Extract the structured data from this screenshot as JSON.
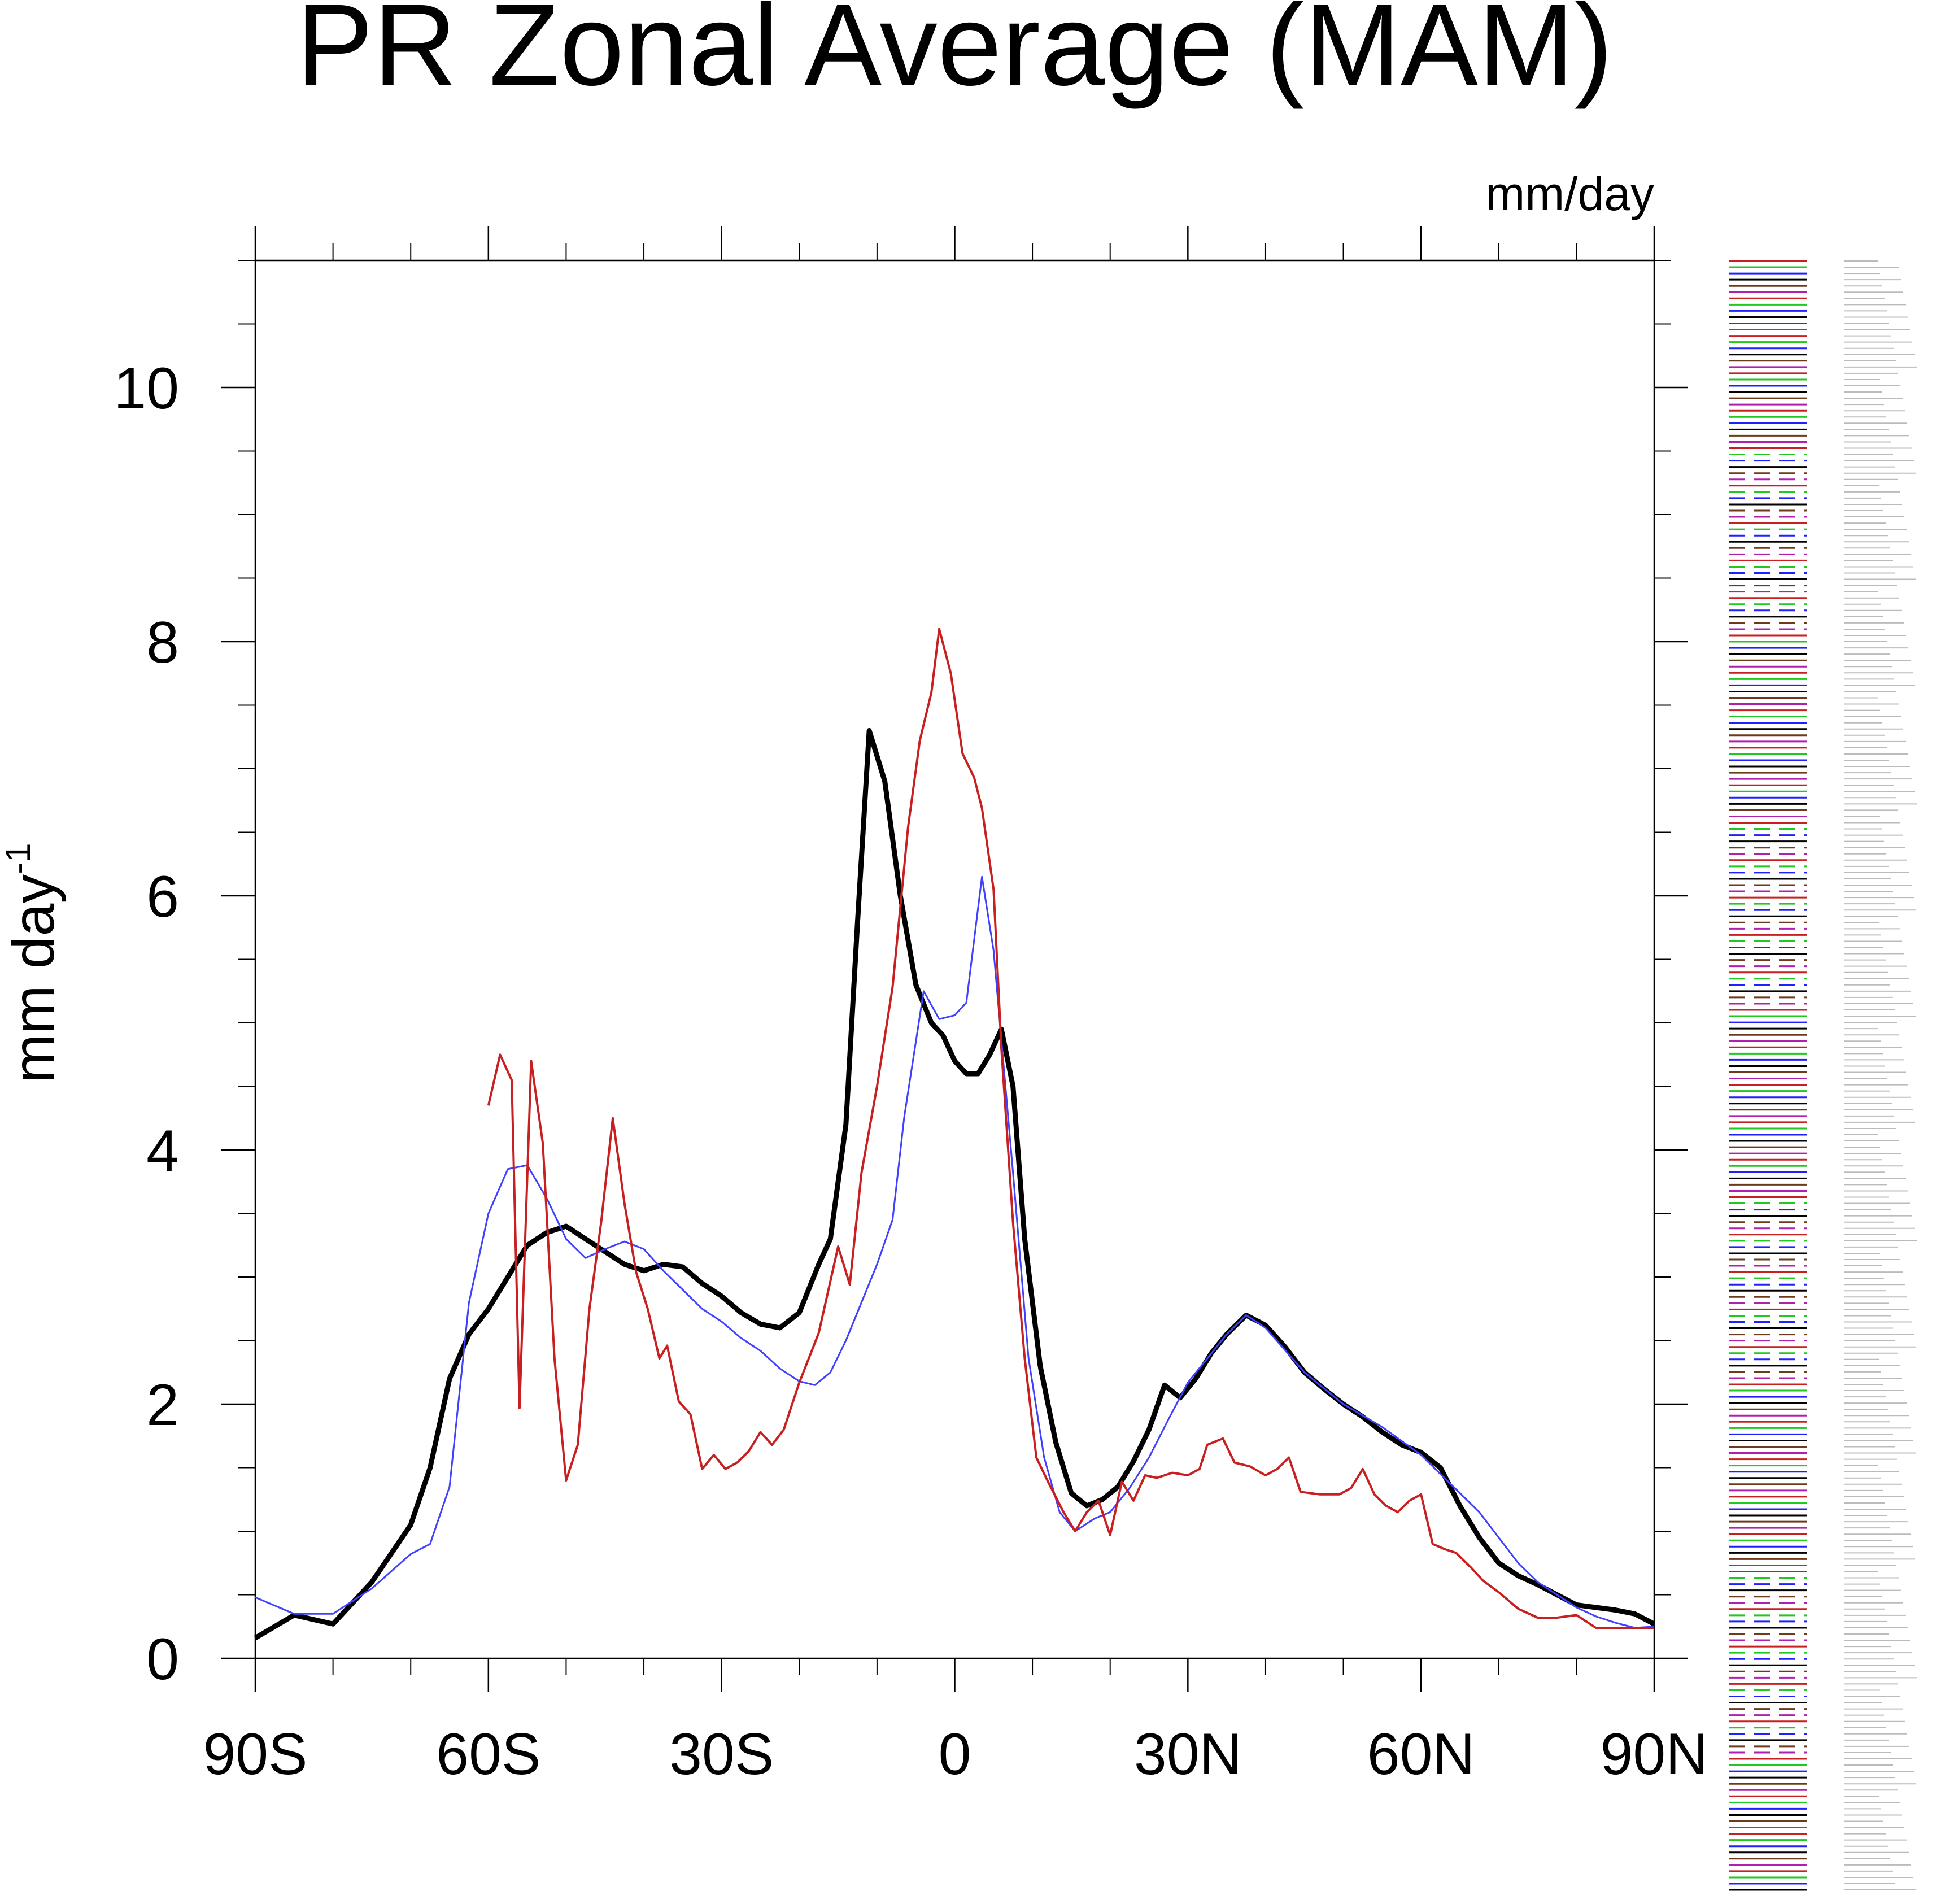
{
  "chart_data": {
    "type": "line",
    "title": "PR Zonal Average (MAM)",
    "units_label": "mm/day",
    "ylabel": "mm day",
    "ylabel_superscript": "-1",
    "xlim": [
      -90,
      90
    ],
    "ylim": [
      0,
      11
    ],
    "xticks": [
      {
        "value": -90,
        "label": "90S"
      },
      {
        "value": -60,
        "label": "60S"
      },
      {
        "value": -30,
        "label": "30S"
      },
      0,
      {
        "value": 30,
        "label": "30N"
      },
      {
        "value": 60,
        "label": "60N"
      },
      {
        "value": 90,
        "label": "90N"
      }
    ],
    "xminorticks": [
      -80,
      -70,
      -50,
      -40,
      -20,
      -10,
      10,
      20,
      40,
      50,
      70,
      80
    ],
    "yticks": [
      0,
      2,
      4,
      6,
      8,
      10
    ],
    "yminorticks": [
      0.5,
      1,
      1.5,
      2.5,
      3,
      3.5,
      4.5,
      5,
      5.5,
      6.5,
      7,
      7.5,
      8.5,
      9,
      9.5,
      10.5,
      11
    ],
    "series": [
      {
        "color": "#000000",
        "x": [
          -90,
          -85,
          -80,
          -75,
          -70,
          -67.5,
          -65,
          -62.5,
          -60,
          -57.5,
          -55,
          -52.5,
          -50,
          -47.5,
          -45,
          -42.5,
          -40,
          -37.5,
          -35,
          -32.5,
          -30,
          -27.5,
          -25,
          -22.5,
          -20,
          -17.5,
          -16,
          -14,
          -12.5,
          -11,
          -9,
          -7,
          -5,
          -3,
          -1.5,
          0,
          1.5,
          3,
          4.5,
          6,
          7.5,
          9,
          11,
          13,
          15,
          17,
          19,
          21,
          23,
          25,
          27,
          29,
          31,
          33,
          35,
          37.5,
          40,
          42.5,
          45,
          47.5,
          50,
          52.5,
          55,
          57.5,
          60,
          62.5,
          65,
          67.5,
          70,
          72.5,
          75,
          77.5,
          80,
          82.5,
          85,
          87.5,
          90
        ],
        "values": [
          0.16,
          0.34,
          0.27,
          0.6,
          1.05,
          1.5,
          2.2,
          2.55,
          2.75,
          3.0,
          3.25,
          3.35,
          3.4,
          3.3,
          3.2,
          3.1,
          3.05,
          3.1,
          3.08,
          2.95,
          2.85,
          2.72,
          2.63,
          2.6,
          2.72,
          3.1,
          3.3,
          4.2,
          5.8,
          7.3,
          6.9,
          6.0,
          5.3,
          5.0,
          4.9,
          4.7,
          4.6,
          4.6,
          4.75,
          4.95,
          4.5,
          3.3,
          2.3,
          1.7,
          1.3,
          1.2,
          1.25,
          1.35,
          1.55,
          1.8,
          2.15,
          2.05,
          2.2,
          2.4,
          2.55,
          2.7,
          2.62,
          2.45,
          2.25,
          2.12,
          2.0,
          1.9,
          1.78,
          1.68,
          1.62,
          1.5,
          1.2,
          0.95,
          0.75,
          0.65,
          0.58,
          0.5,
          0.42,
          0.4,
          0.38,
          0.35,
          0.27
        ]
      },
      {
        "color": "#4040ff",
        "x": [
          -90,
          -85,
          -80,
          -77.5,
          -75,
          -70,
          -67.5,
          -65,
          -62.5,
          -60,
          -57.5,
          -55,
          -52.5,
          -50,
          -47.5,
          -45,
          -42.5,
          -40,
          -37.5,
          -35,
          -32.5,
          -30,
          -27.5,
          -25,
          -22.5,
          -20,
          -18,
          -16,
          -14,
          -12,
          -10,
          -8,
          -6.5,
          -4,
          -2,
          0,
          1.5,
          3.5,
          5,
          7.5,
          9.5,
          11.5,
          13.5,
          15.5,
          18,
          20,
          22.5,
          25,
          27.5,
          30,
          35,
          37.5,
          40,
          45,
          50,
          55,
          60,
          62.5,
          65,
          67.5,
          70,
          72.5,
          75,
          77.5,
          80,
          82.5,
          85,
          87.5,
          90
        ],
        "values": [
          0.48,
          0.35,
          0.35,
          0.45,
          0.55,
          0.82,
          0.9,
          1.35,
          2.8,
          3.5,
          3.85,
          3.88,
          3.62,
          3.3,
          3.15,
          3.22,
          3.28,
          3.22,
          3.05,
          2.9,
          2.75,
          2.65,
          2.52,
          2.42,
          2.28,
          2.18,
          2.15,
          2.25,
          2.5,
          2.8,
          3.1,
          3.45,
          4.26,
          5.25,
          5.03,
          5.06,
          5.16,
          6.15,
          5.57,
          3.82,
          2.36,
          1.58,
          1.15,
          1.0,
          1.1,
          1.15,
          1.34,
          1.58,
          1.88,
          2.17,
          2.55,
          2.7,
          2.6,
          2.25,
          2.0,
          1.82,
          1.6,
          1.45,
          1.3,
          1.15,
          0.95,
          0.75,
          0.6,
          0.5,
          0.4,
          0.33,
          0.28,
          0.24,
          0.25
        ]
      },
      {
        "color": "#c82020",
        "x": [
          -60,
          -58.5,
          -57,
          -56,
          -54.5,
          -53,
          -51.5,
          -50,
          -48.5,
          -47,
          -45.5,
          -44,
          -42.5,
          -41,
          -39.5,
          -38,
          -37,
          -35.5,
          -34,
          -32.5,
          -31,
          -29.5,
          -28,
          -26.5,
          -25,
          -23.5,
          -22,
          -20,
          -17.5,
          -15,
          -13.5,
          -12,
          -10,
          -8,
          -6,
          -4.5,
          -3,
          -2,
          -0.5,
          1,
          2.5,
          3.5,
          5,
          6,
          7.5,
          9,
          10.5,
          12,
          14,
          15.5,
          17,
          18.5,
          20,
          21.5,
          23,
          24.5,
          26,
          28,
          30,
          31.5,
          32.5,
          34.5,
          36,
          38,
          40,
          41.5,
          43,
          44.5,
          47,
          49.5,
          51,
          52.5,
          54,
          55.5,
          57,
          58.5,
          60,
          61.5,
          63,
          64.5,
          66.5,
          68,
          70,
          72.5,
          75,
          77.5,
          80,
          82.5,
          85,
          87.5,
          90
        ],
        "values": [
          4.35,
          4.75,
          4.55,
          1.97,
          4.7,
          4.05,
          2.36,
          1.4,
          1.68,
          2.75,
          3.43,
          4.25,
          3.58,
          3.04,
          2.75,
          2.36,
          2.46,
          2.02,
          1.92,
          1.49,
          1.6,
          1.49,
          1.54,
          1.63,
          1.78,
          1.68,
          1.8,
          2.17,
          2.56,
          3.24,
          2.94,
          3.82,
          4.5,
          5.28,
          6.54,
          7.22,
          7.6,
          8.1,
          7.75,
          7.12,
          6.93,
          6.69,
          6.05,
          4.8,
          3.43,
          2.36,
          1.58,
          1.39,
          1.15,
          1.0,
          1.15,
          1.24,
          0.97,
          1.39,
          1.24,
          1.44,
          1.42,
          1.46,
          1.44,
          1.49,
          1.68,
          1.73,
          1.54,
          1.51,
          1.44,
          1.49,
          1.58,
          1.31,
          1.29,
          1.29,
          1.34,
          1.49,
          1.29,
          1.2,
          1.15,
          1.24,
          1.29,
          0.9,
          0.86,
          0.83,
          0.71,
          0.61,
          0.52,
          0.39,
          0.32,
          0.32,
          0.34,
          0.24,
          0.24,
          0.24,
          0.24
        ]
      }
    ]
  }
}
